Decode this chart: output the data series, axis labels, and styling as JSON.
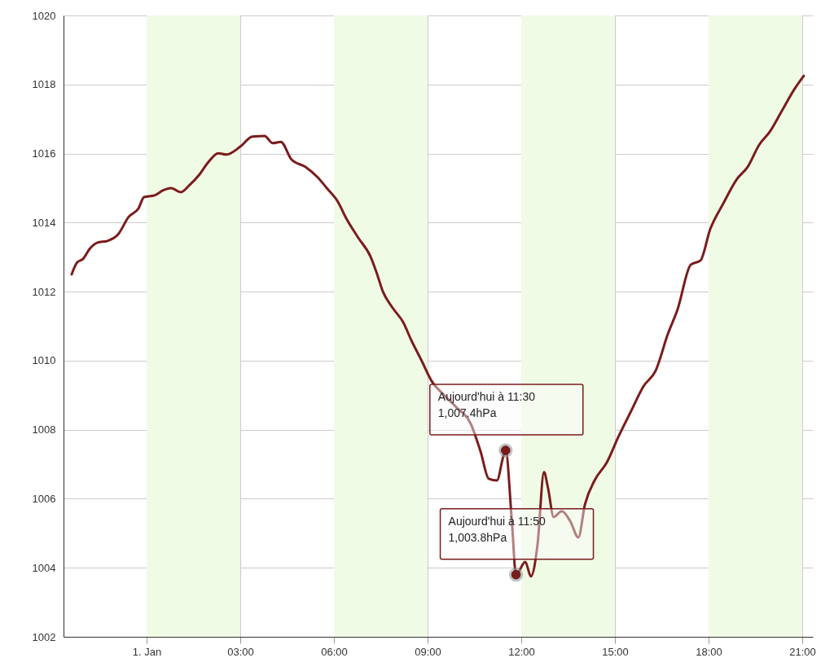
{
  "chart_data": {
    "type": "line",
    "x": [
      -2.4,
      -2.22,
      -2.03,
      -1.83,
      -1.57,
      -1.25,
      -0.91,
      -0.57,
      -0.26,
      -0.08,
      0.26,
      0.52,
      0.78,
      1.1,
      1.36,
      1.7,
      1.96,
      2.3,
      2.56,
      3.0,
      3.39,
      3.78,
      4.04,
      4.3,
      4.64,
      5.09,
      5.48,
      5.79,
      6.13,
      6.39,
      6.78,
      7.17,
      7.36,
      7.57,
      7.88,
      8.22,
      8.48,
      8.82,
      9.13,
      9.52,
      9.91,
      10.38,
      10.7,
      10.96,
      11.22,
      11.43,
      11.5,
      11.7,
      11.833,
      12.13,
      12.31,
      12.52,
      12.73,
      12.86,
      13.04,
      13.3,
      13.57,
      13.83,
      14.04,
      14.35,
      14.74,
      15.13,
      15.52,
      15.91,
      16.31,
      16.7,
      17.01,
      17.43,
      17.74,
      18.05,
      18.47,
      18.91,
      19.25,
      19.62,
      19.96,
      20.35,
      20.74,
      21.05
    ],
    "series": [
      {
        "color": "#7b1c1c",
        "values": [
          1012.5,
          1012.85,
          1012.95,
          1013.23,
          1013.42,
          1013.47,
          1013.66,
          1014.17,
          1014.41,
          1014.74,
          1014.79,
          1014.93,
          1015.0,
          1014.88,
          1015.07,
          1015.4,
          1015.73,
          1016.01,
          1015.97,
          1016.2,
          1016.49,
          1016.51,
          1016.3,
          1016.34,
          1015.83,
          1015.61,
          1015.31,
          1014.98,
          1014.6,
          1014.13,
          1013.56,
          1013.02,
          1012.57,
          1012.0,
          1011.53,
          1011.11,
          1010.59,
          1009.98,
          1009.41,
          1009.01,
          1008.66,
          1008.18,
          1007.36,
          1006.58,
          1006.53,
          1007.24,
          1007.4,
          1005.35,
          1003.8,
          1004.17,
          1003.75,
          1004.65,
          1006.77,
          1006.3,
          1005.47,
          1005.64,
          1005.35,
          1004.88,
          1005.83,
          1006.53,
          1007.05,
          1007.83,
          1008.54,
          1009.25,
          1009.72,
          1010.78,
          1011.49,
          1012.78,
          1012.9,
          1013.8,
          1014.55,
          1015.26,
          1015.61,
          1016.25,
          1016.63,
          1017.24,
          1017.85,
          1018.25
        ]
      }
    ],
    "xlim": [
      -2.66,
      21.34
    ],
    "xticks": [
      {
        "value": 0,
        "label": "1. Jan"
      },
      {
        "value": 3,
        "label": "03:00"
      },
      {
        "value": 6,
        "label": "06:00"
      },
      {
        "value": 9,
        "label": "09:00"
      },
      {
        "value": 12,
        "label": "12:00"
      },
      {
        "value": 15,
        "label": "15:00"
      },
      {
        "value": 18,
        "label": "18:00"
      },
      {
        "value": 21,
        "label": "21:00"
      }
    ],
    "ylim": [
      1002,
      1020
    ],
    "yticks": [
      1002,
      1004,
      1006,
      1008,
      1010,
      1012,
      1014,
      1016,
      1018,
      1020
    ],
    "grid": true,
    "marker": "none",
    "line_style": "solid",
    "bands": [
      {
        "axis": "x",
        "from": 0,
        "to": 3,
        "color": "#f0fbe6"
      },
      {
        "axis": "x",
        "from": 6,
        "to": 9,
        "color": "#f0fbe6"
      },
      {
        "axis": "x",
        "from": 12,
        "to": 15,
        "color": "#f0fbe6"
      },
      {
        "axis": "x",
        "from": 18,
        "to": 21,
        "color": "#f0fbe6"
      }
    ],
    "annotations": [
      {
        "text": "Aujourd'hui à 11:30\n1,007.4hPa",
        "x": 11.5,
        "y": 1007.4
      },
      {
        "text": "Aujourd'hui à 11:50\n1,003.8hPa",
        "x": 11.833,
        "y": 1003.8
      }
    ]
  }
}
